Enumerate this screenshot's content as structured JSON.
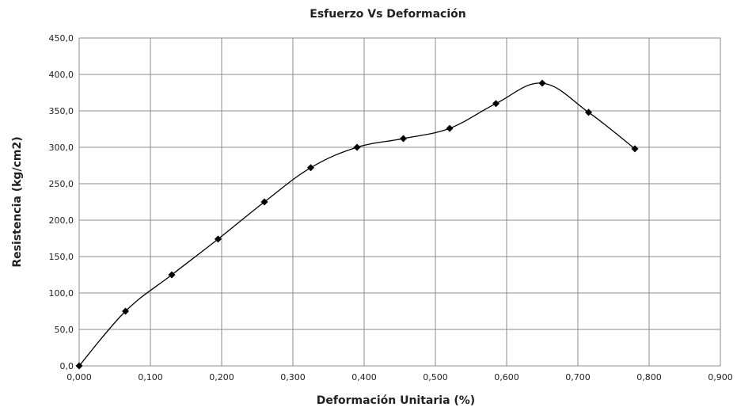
{
  "chart_data": {
    "type": "line",
    "title": "Esfuerzo Vs Deformación",
    "xlabel": "Deformación Unitaria (%)",
    "ylabel": "Resistencia (kg/cm2)",
    "xlim": [
      0,
      0.9
    ],
    "ylim": [
      0,
      450
    ],
    "x_ticks": [
      "0,000",
      "0,100",
      "0,200",
      "0,300",
      "0,400",
      "0,500",
      "0,600",
      "0,700",
      "0,800",
      "0,900"
    ],
    "y_ticks": [
      "0,0",
      "50,0",
      "100,0",
      "150,0",
      "200,0",
      "250,0",
      "300,0",
      "350,0",
      "400,0",
      "450,0"
    ],
    "grid": true,
    "legend": "none",
    "marker": "diamond",
    "line_color": "#000000",
    "series": [
      {
        "x": [
          0.0,
          0.065,
          0.13,
          0.195,
          0.26,
          0.325,
          0.39,
          0.455,
          0.52,
          0.585,
          0.65,
          0.715,
          0.78
        ],
        "y": [
          0,
          75,
          125,
          174,
          225,
          272,
          300,
          312,
          326,
          360,
          388,
          348,
          298
        ]
      }
    ]
  }
}
